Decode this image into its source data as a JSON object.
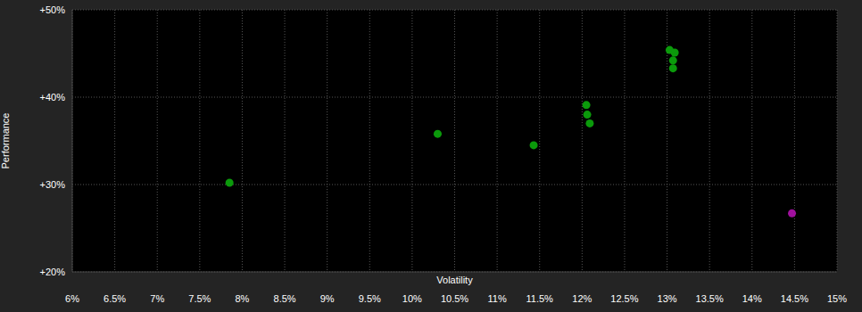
{
  "chart_data": {
    "type": "scatter",
    "x_label": "Volatility",
    "y_label": "Performance",
    "x": [
      7.85,
      10.3,
      11.43,
      12.05,
      12.06,
      12.09,
      13.03,
      13.09,
      13.07,
      13.07,
      14.47
    ],
    "values": [
      30.2,
      35.8,
      34.5,
      39.1,
      38.0,
      37.0,
      45.4,
      45.1,
      44.2,
      43.3,
      26.7
    ],
    "colors": [
      "#0b9a0b",
      "#0b9a0b",
      "#0b9a0b",
      "#0b9a0b",
      "#0b9a0b",
      "#0b9a0b",
      "#0b9a0b",
      "#0b9a0b",
      "#0b9a0b",
      "#0b9a0b",
      "#a0109e"
    ],
    "xlim": [
      6,
      15
    ],
    "xticks": [
      {
        "value": 6,
        "label": "6%"
      },
      {
        "value": 6.5,
        "label": "6.5%"
      },
      {
        "value": 7,
        "label": "7%"
      },
      {
        "value": 7.5,
        "label": "7.5%"
      },
      {
        "value": 8,
        "label": "8%"
      },
      {
        "value": 8.5,
        "label": "8.5%"
      },
      {
        "value": 9,
        "label": "9%"
      },
      {
        "value": 9.5,
        "label": "9.5%"
      },
      {
        "value": 10,
        "label": "10%"
      },
      {
        "value": 10.5,
        "label": "10.5%"
      },
      {
        "value": 11,
        "label": "11%"
      },
      {
        "value": 11.5,
        "label": "11.5%"
      },
      {
        "value": 12,
        "label": "12%"
      },
      {
        "value": 12.5,
        "label": "12.5%"
      },
      {
        "value": 13,
        "label": "13%"
      },
      {
        "value": 13.5,
        "label": "13.5%"
      },
      {
        "value": 14,
        "label": "14%"
      },
      {
        "value": 14.5,
        "label": "14.5%"
      },
      {
        "value": 15,
        "label": "15%"
      }
    ],
    "ylim": [
      20,
      50
    ],
    "yticks": [
      {
        "value": 20,
        "label": "+20%"
      },
      {
        "value": 30,
        "label": "+30%"
      },
      {
        "value": 40,
        "label": "+40%"
      },
      {
        "value": 50,
        "label": "+50%"
      }
    ],
    "grid": true,
    "marker": "circle"
  }
}
